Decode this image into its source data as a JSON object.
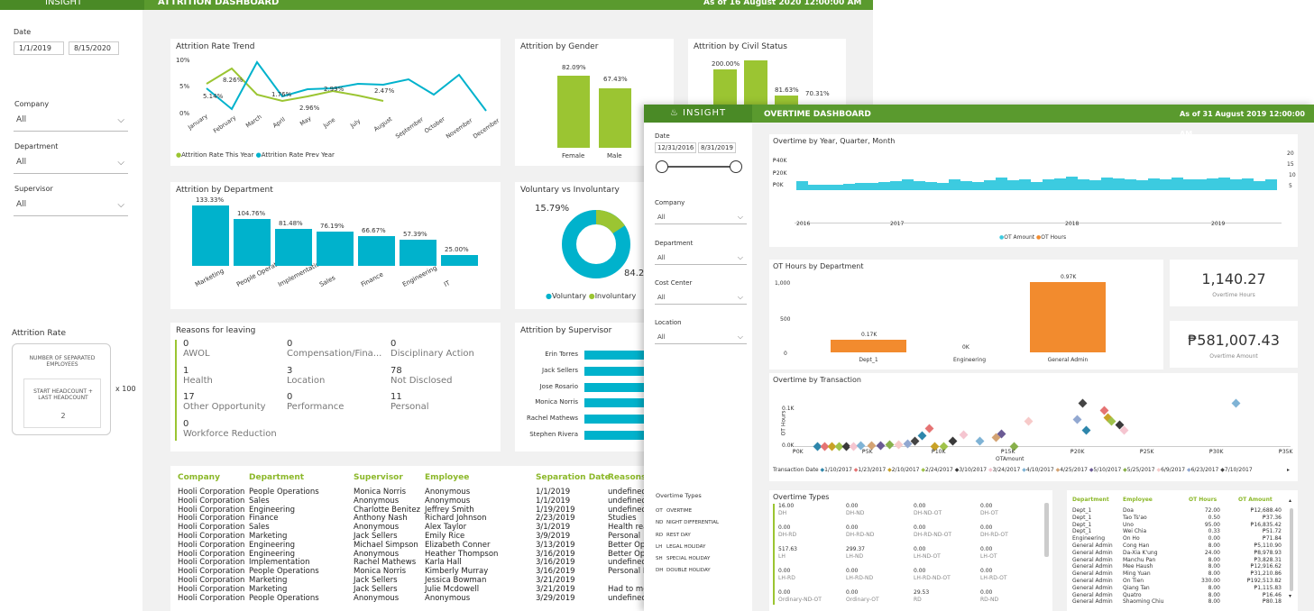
{
  "back": {
    "logo": "INSIGHT",
    "title": "ATTRITION DASHBOARD",
    "asof": "As of 16 August 2020 12:00:00 AM",
    "date_label": "Date",
    "date_from": "1/1/2019",
    "date_to": "8/15/2020",
    "company_label": "Company",
    "company_value": "All",
    "department_label": "Department",
    "department_value": "All",
    "supervisor_label": "Supervisor",
    "supervisor_value": "All",
    "attrition_rate_label": "Attrition Rate",
    "formula_num": "NUMBER OF SEPARATED EMPLOYEES",
    "formula_den": "START HEADCOUNT + LAST HEADCOUNT",
    "formula_den_div": "2",
    "formula_mult": "x 100",
    "trend": {
      "title": "Attrition Rate Trend",
      "yticks": [
        "10%",
        "5%",
        "0%"
      ],
      "months": [
        "January",
        "February",
        "March",
        "April",
        "May",
        "June",
        "July",
        "August",
        "September",
        "October",
        "November",
        "December"
      ],
      "labels": [
        "5.14%",
        "8.26%",
        "1.76%",
        "2.96%",
        "2.99%",
        "2.47%"
      ],
      "legend_this": "Attrition Rate This Year",
      "legend_prev": "Attrition Rate Prev Year"
    },
    "gender": {
      "title": "Attrition by Gender",
      "values": [
        "82.09%",
        "67.43%"
      ],
      "cats": [
        "Female",
        "Male"
      ]
    },
    "civil": {
      "title": "Attrition by Civil Status",
      "values": [
        "200.00%",
        "81.63%",
        "70.31%"
      ]
    },
    "dept": {
      "title": "Attrition by Department",
      "values": [
        "133.33%",
        "104.76%",
        "81.48%",
        "76.19%",
        "66.67%",
        "57.39%",
        "25.00%"
      ],
      "cats": [
        "Marketing",
        "People Operati...",
        "Implementation",
        "Sales",
        "Finance",
        "Engineering",
        "IT"
      ]
    },
    "vol": {
      "title": "Voluntary vs Involuntary",
      "pct_small": "15.79%",
      "pct_big": "84.2",
      "legend_vol": "Voluntary",
      "legend_inv": "Involuntary"
    },
    "reasons": {
      "title": "Reasons for leaving",
      "items": [
        {
          "v": "0",
          "k": "AWOL"
        },
        {
          "v": "0",
          "k": "Compensation/Fina..."
        },
        {
          "v": "0",
          "k": "Disciplinary Action"
        },
        {
          "v": "1",
          "k": "Health"
        },
        {
          "v": "3",
          "k": "Location"
        },
        {
          "v": "78",
          "k": "Not Disclosed"
        },
        {
          "v": "17",
          "k": "Other Opportunity"
        },
        {
          "v": "0",
          "k": "Performance"
        },
        {
          "v": "11",
          "k": "Personal"
        },
        {
          "v": "0",
          "k": "Workforce Reduction"
        }
      ]
    },
    "supervisor": {
      "title": "Attrition by Supervisor",
      "names": [
        "Erin Torres",
        "Jack Sellers",
        "Jose Rosario",
        "Monica Norris",
        "Rachel Mathews",
        "Stephen Rivera"
      ]
    },
    "table": {
      "headers": [
        "Company",
        "Department",
        "Supervisor",
        "Employee",
        "Separation Date",
        "Reasons"
      ],
      "rows": [
        [
          "Hooli Corporation",
          "People Operations",
          "Monica Norris",
          "Anonymous",
          "1/1/2019",
          "undefined"
        ],
        [
          "Hooli Corporation",
          "Sales",
          "Anonymous",
          "Anonymous",
          "1/1/2019",
          "undefined"
        ],
        [
          "Hooli Corporation",
          "Engineering",
          "Charlotte Benitez",
          "Jeffrey Smith",
          "1/19/2019",
          "undefined"
        ],
        [
          "Hooli Corporation",
          "Finance",
          "Anthony Nash",
          "Richard Johnson",
          "2/23/2019",
          "Studies"
        ],
        [
          "Hooli Corporation",
          "Sales",
          "Anonymous",
          "Alex Taylor",
          "3/1/2019",
          "Health rea"
        ],
        [
          "Hooli Corporation",
          "Marketing",
          "Jack Sellers",
          "Emily Rice",
          "3/9/2019",
          "Personal"
        ],
        [
          "Hooli Corporation",
          "Engineering",
          "Michael Simpson",
          "Elizabeth Conner",
          "3/13/2019",
          "Better Op"
        ],
        [
          "Hooli Corporation",
          "Engineering",
          "Anonymous",
          "Heather Thompson",
          "3/16/2019",
          "Better Op"
        ],
        [
          "Hooli Corporation",
          "Implementation",
          "Rachel Mathews",
          "Karla Hall",
          "3/16/2019",
          "undefined"
        ],
        [
          "Hooli Corporation",
          "People Operations",
          "Monica Norris",
          "Kimberly Murray",
          "3/16/2019",
          "Personal I"
        ],
        [
          "Hooli Corporation",
          "Marketing",
          "Jack Sellers",
          "Jessica Bowman",
          "3/21/2019",
          ""
        ],
        [
          "Hooli Corporation",
          "Marketing",
          "Jack Sellers",
          "Julie Mcdowell",
          "3/21/2019",
          "Had to mo"
        ],
        [
          "Hooli Corporation",
          "People Operations",
          "Anonymous",
          "Anonymous",
          "3/29/2019",
          "undefined"
        ]
      ]
    }
  },
  "front": {
    "logo": "INSIGHT",
    "title": "OVERTIME DASHBOARD",
    "asof": "As of 31 August 2019 12:00:00 AM",
    "date_label": "Date",
    "date_from": "12/31/2016",
    "date_to": "8/31/2019",
    "company_label": "Company",
    "company_value": "All",
    "department_label": "Department",
    "department_value": "All",
    "cost_label": "Cost Center",
    "cost_value": "All",
    "location_label": "Location",
    "location_value": "All",
    "types_title": "Overtime Types",
    "types": [
      {
        "c": "OT",
        "n": "OVERTIME"
      },
      {
        "c": "ND",
        "n": "NIGHT DIFFERENTIAL"
      },
      {
        "c": "RD",
        "n": "REST DAY"
      },
      {
        "c": "LH",
        "n": "LEGAL HOLIDAY"
      },
      {
        "c": "SH",
        "n": "SPECIAL HOLIDAY"
      },
      {
        "c": "DH",
        "n": "DOUBLE HOLIDAY"
      }
    ],
    "yqm": {
      "title": "Overtime by Year, Quarter, Month",
      "yticks": [
        "₱40K",
        "₱20K",
        "₱0K"
      ],
      "y2": [
        "20",
        "15",
        "10",
        "5"
      ],
      "years": [
        "2016",
        "2017",
        "2018",
        "2019"
      ],
      "legend_amt": "OT Amount",
      "legend_hrs": "OT Hours"
    },
    "dept": {
      "title": "OT Hours by Department",
      "yticks": [
        "1,000",
        "500",
        "0"
      ],
      "cats": [
        "Dept_1",
        "Engineering",
        "General Admin"
      ],
      "labels": [
        "0.17K",
        "0K",
        "0.97K"
      ],
      "values": [
        0.17,
        0,
        0.97
      ]
    },
    "kpi_hours": "1,140.27",
    "kpi_hours_lbl": "Overtime Hours",
    "kpi_amount": "₱581,007.43",
    "kpi_amount_lbl": "Overtime Amount",
    "trans": {
      "title": "Overtime by Transaction",
      "yticks": [
        "0.1K",
        "0.0K"
      ],
      "ylabel": "OT Hours",
      "xlabel": "OTAmount",
      "xticks": [
        "₱0K",
        "₱5K",
        "₱10K",
        "₱15K",
        "₱20K",
        "₱25K",
        "₱30K",
        "₱35K"
      ],
      "legend_label": "Transaction Date",
      "dates": [
        "1/10/2017",
        "1/23/2017",
        "2/10/2017",
        "2/24/2017",
        "3/10/2017",
        "3/24/2017",
        "4/10/2017",
        "4/25/2017",
        "5/10/2017",
        "5/25/2017",
        "6/9/2017",
        "6/23/2017",
        "7/10/2017"
      ]
    },
    "ottypes": {
      "title": "Overtime Types",
      "cells": [
        [
          "16.00",
          "0.00",
          "0.00",
          "0.00"
        ],
        [
          "DH",
          "DH-ND",
          "DH-ND-OT",
          "DH-OT"
        ],
        [
          "0.00",
          "0.00",
          "0.00",
          "0.00"
        ],
        [
          "DH-RD",
          "DH-RD-ND",
          "DH-RD-ND-OT",
          "DH-RD-OT"
        ],
        [
          "517.63",
          "299.37",
          "0.00",
          "0.00"
        ],
        [
          "LH",
          "LH-ND",
          "LH-ND-OT",
          "LH-OT"
        ],
        [
          "0.00",
          "0.00",
          "0.00",
          "0.00"
        ],
        [
          "LH-RD",
          "LH-RD-ND",
          "LH-RD-ND-OT",
          "LH-RD-OT"
        ],
        [
          "0.00",
          "0.00",
          "29.53",
          "0.00"
        ],
        [
          "Ordinary-ND-OT",
          "Ordinary-OT",
          "RD",
          "RD-ND"
        ],
        [
          "0.00",
          "0.00",
          "183.72",
          "95.02"
        ]
      ]
    },
    "emp": {
      "headers": [
        "Department",
        "Employee",
        "OT Hours",
        "OT Amount"
      ],
      "rows": [
        [
          "Dept_1",
          "Doa",
          "72.00",
          "₱12,688.40"
        ],
        [
          "Dept_1",
          "Tao Ts'ao",
          "0.50",
          "₱37.36"
        ],
        [
          "Dept_1",
          "Uno",
          "95.00",
          "₱16,835.42"
        ],
        [
          "Dept_1",
          "Wei Chia",
          "0.33",
          "₱51.72"
        ],
        [
          "Engineering",
          "On Ho",
          "0.00",
          "₱71.84"
        ],
        [
          "General Admin",
          "Cong Han",
          "8.00",
          "₱5,110.90"
        ],
        [
          "General Admin",
          "Da-Xia K'ung",
          "24.00",
          "₱8,978.93"
        ],
        [
          "General Admin",
          "Manchu Pan",
          "8.00",
          "₱3,828.31"
        ],
        [
          "General Admin",
          "Mee Haush",
          "8.00",
          "₱12,916.62"
        ],
        [
          "General Admin",
          "Ming Yuan",
          "8.00",
          "₱31,210.86"
        ],
        [
          "General Admin",
          "On Tien",
          "330.00",
          "₱192,513.82"
        ],
        [
          "General Admin",
          "Qiang Tan",
          "8.00",
          "₱1,115.83"
        ],
        [
          "General Admin",
          "Quatro",
          "8.00",
          "₱16.46"
        ],
        [
          "General Admin",
          "Shaoming Chiu",
          "8.00",
          "₱80.18"
        ]
      ]
    }
  }
}
